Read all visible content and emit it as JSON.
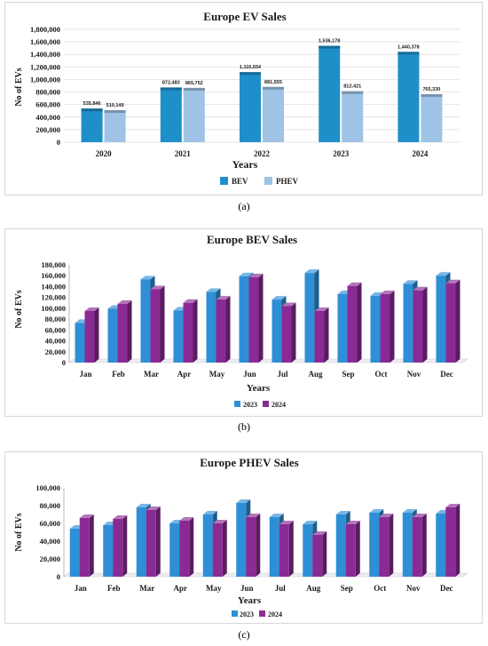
{
  "colors": {
    "bev_2020s": "#1f8fc9",
    "phev_light": "#9ec3e6",
    "m2023": "#2f8fd6",
    "m2024": "#8a2b95"
  },
  "chart_data": [
    {
      "type": "bar",
      "title": "Europe EV Sales",
      "xlabel": "Years",
      "ylabel": "No of EVs",
      "categories": [
        "2020",
        "2021",
        "2022",
        "2023",
        "2024"
      ],
      "series": [
        {
          "name": "BEV",
          "values": [
            535846,
            872483,
            1116654,
            1536178,
            1440378
          ]
        },
        {
          "name": "PHEV",
          "values": [
            510149,
            865752,
            881555,
            812421,
            765330
          ]
        }
      ],
      "data_labels": [
        [
          "535,846",
          "872,483",
          "1,116,654",
          "1,536,178",
          "1,440,378"
        ],
        [
          "510,149",
          "865,752",
          "881,555",
          "812,421",
          "765,330"
        ]
      ],
      "y_ticks": [
        "0",
        "200,000",
        "400,000",
        "600,000",
        "800,000",
        "1,000,000",
        "1,200,000",
        "1,400,000",
        "1,600,000",
        "1,800,000"
      ],
      "ylim": [
        0,
        1800000
      ],
      "legend": "bottom",
      "grid": true
    },
    {
      "type": "bar",
      "title": "Europe BEV Sales",
      "xlabel": "Years",
      "ylabel": "No of  EVs",
      "categories": [
        "Jan",
        "Feb",
        "Mar",
        "Apr",
        "May",
        "Jun",
        "Jul",
        "Aug",
        "Sep",
        "Oct",
        "Nov",
        "Dec"
      ],
      "series": [
        {
          "name": "2023",
          "values": [
            73000,
            99000,
            153000,
            96000,
            130000,
            159000,
            116000,
            165000,
            126000,
            123000,
            145000,
            160000
          ]
        },
        {
          "name": "2024",
          "values": [
            95000,
            108000,
            135000,
            110000,
            116000,
            157000,
            104000,
            95000,
            141000,
            126000,
            133000,
            146000
          ]
        }
      ],
      "y_ticks": [
        "0",
        "20,000",
        "40,000",
        "60,000",
        "80,000",
        "100,000",
        "120,000",
        "140,000",
        "160,000",
        "180,000"
      ],
      "ylim": [
        0,
        180000
      ],
      "legend": "bottom",
      "grid": false
    },
    {
      "type": "bar",
      "title": "Europe PHEV Sales",
      "xlabel": "Years",
      "ylabel": "No of EVs",
      "categories": [
        "Jan",
        "Feb",
        "Mar",
        "Apr",
        "May",
        "Jun",
        "Jul",
        "Aug",
        "Sep",
        "Oct",
        "Nov",
        "Dec"
      ],
      "series": [
        {
          "name": "2023",
          "values": [
            54000,
            58000,
            78000,
            60000,
            70000,
            83000,
            67000,
            59000,
            70000,
            72000,
            72000,
            71000
          ]
        },
        {
          "name": "2024",
          "values": [
            66000,
            65000,
            75000,
            63000,
            60000,
            67000,
            59000,
            47000,
            59000,
            67000,
            67000,
            78000
          ]
        }
      ],
      "y_ticks": [
        "0",
        "20,000",
        "40,000",
        "60,000",
        "80,000",
        "100,000"
      ],
      "ylim": [
        0,
        100000
      ],
      "legend": "bottom",
      "grid": false
    }
  ],
  "captions": [
    "(a)",
    "(b)",
    "(c)"
  ]
}
